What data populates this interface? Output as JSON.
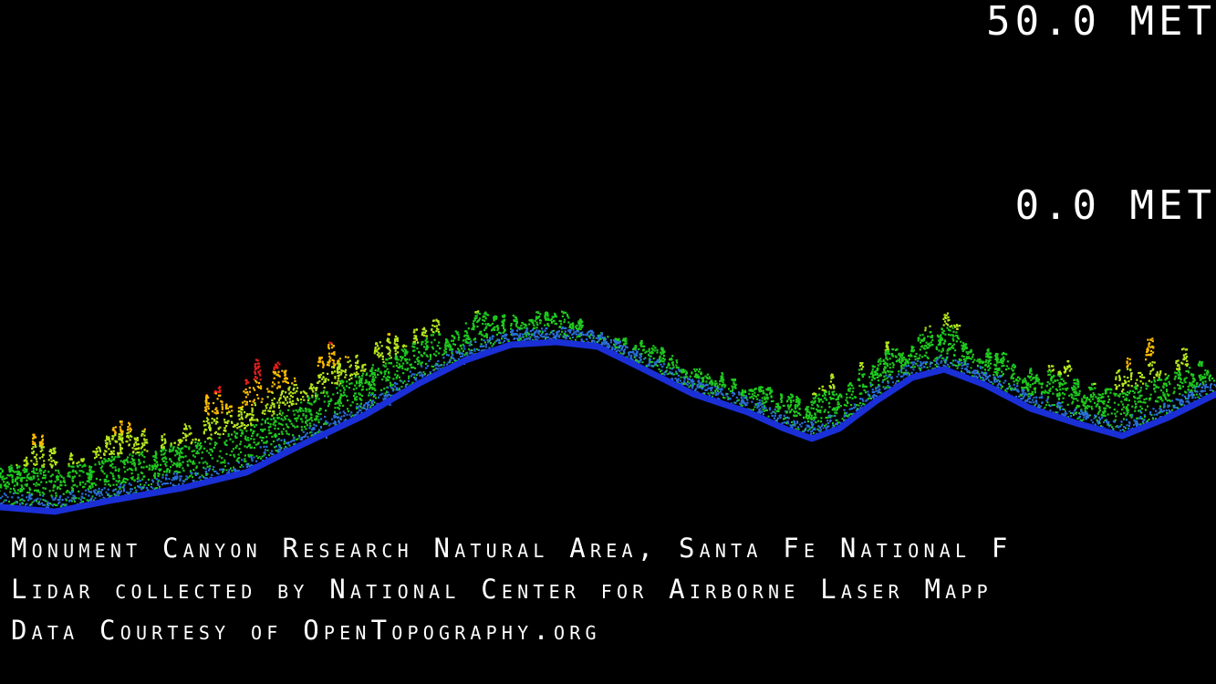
{
  "scale": {
    "top_label": "50.0 MET",
    "zero_label": "0.0 MET"
  },
  "captions": {
    "line1": "Monument Canyon Research Natural Area, Santa Fe National F",
    "line2": "Lidar collected by National Center for Airborne Laser Mapp",
    "line3": "Data Courtesy of OpenTopography.org"
  },
  "colors": {
    "background": "#000000",
    "ground": "#1a2fd6",
    "canopy_low": "#1fc81f",
    "canopy_mid": "#b5e61d",
    "canopy_upper": "#ffbf00",
    "canopy_high": "#e8201a"
  }
}
